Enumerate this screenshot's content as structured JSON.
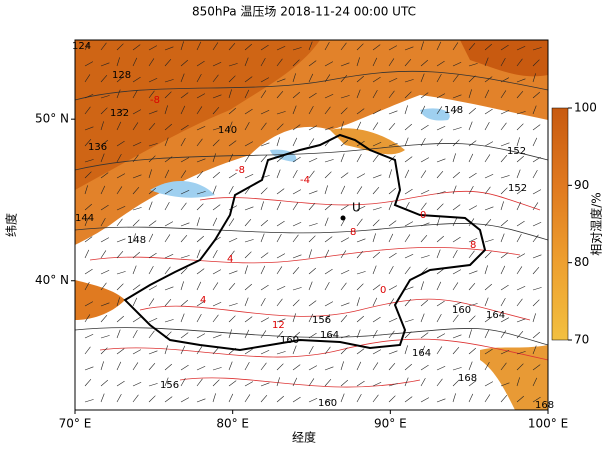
{
  "title": "850hPa 温压场 2018-11-24 00:00 UTC",
  "x_axis": {
    "label": "经度",
    "lim": [
      70,
      100
    ],
    "ticks": [
      {
        "value": 70,
        "label": "70° E"
      },
      {
        "value": 80,
        "label": "80° E"
      },
      {
        "value": 90,
        "label": "90° E"
      },
      {
        "value": 100,
        "label": "100° E"
      }
    ]
  },
  "y_axis": {
    "label": "纬度",
    "lim": [
      32,
      54.9
    ],
    "ticks": [
      {
        "value": 40,
        "label": "40° N"
      },
      {
        "value": 50,
        "label": "50° N"
      }
    ]
  },
  "colorbar": {
    "label": "相对湿度/%",
    "lim": [
      70,
      100
    ],
    "ticks": [
      70,
      80,
      90,
      100
    ]
  },
  "station": "U",
  "height_labels": [
    124,
    128,
    132,
    136,
    140,
    144,
    148,
    148,
    152,
    152,
    156,
    160,
    164,
    160,
    164,
    156,
    160,
    164,
    168,
    168
  ],
  "temperature_labels": [
    -8,
    -8,
    -4,
    0,
    4,
    8,
    8,
    12,
    4,
    0
  ]
}
